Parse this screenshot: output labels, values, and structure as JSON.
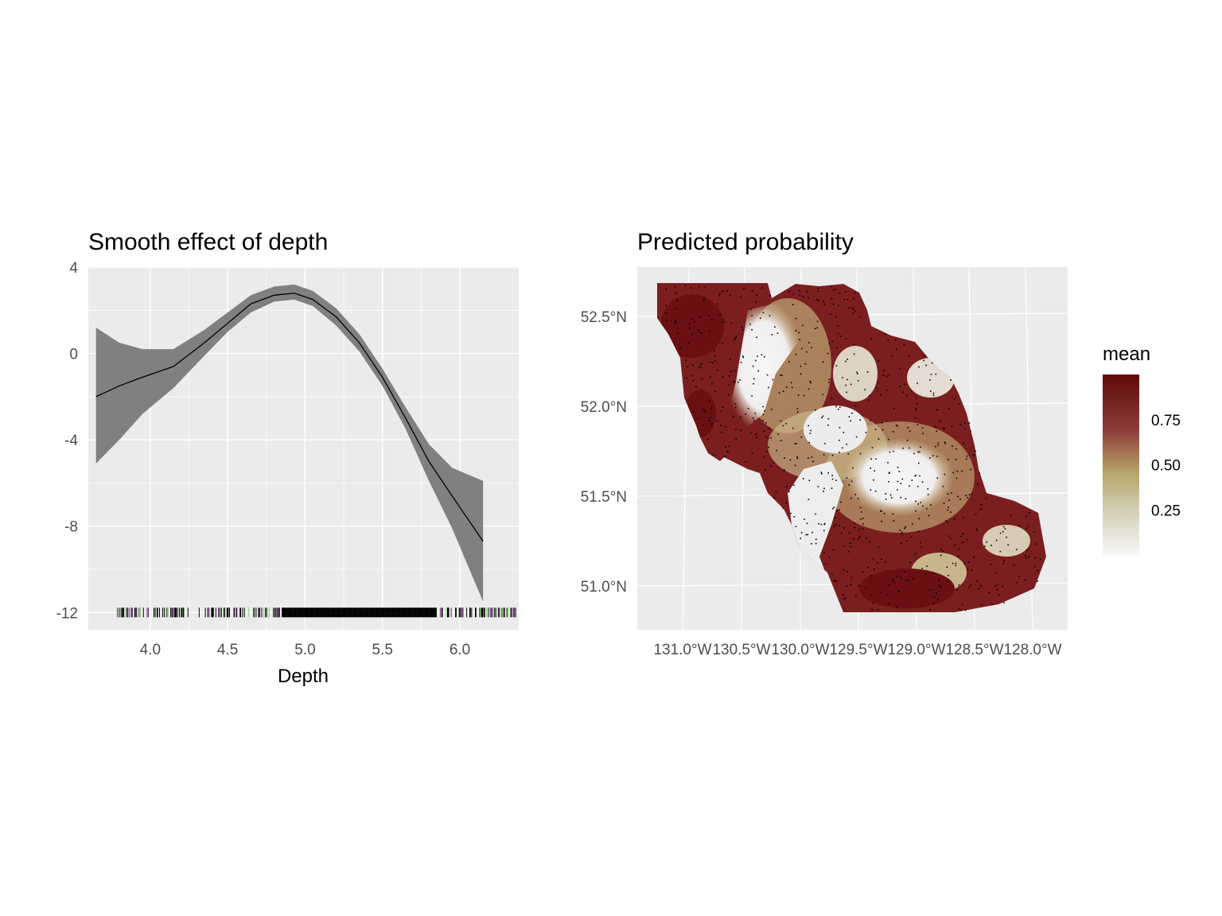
{
  "chart_data": [
    {
      "type": "line",
      "title": "Smooth effect of depth",
      "xlabel": "Depth",
      "ylabel": "",
      "xlim": [
        3.6,
        6.38
      ],
      "ylim": [
        -12.8,
        4
      ],
      "x_ticks": [
        "4.0",
        "4.5",
        "5.0",
        "5.5",
        "6.0"
      ],
      "y_ticks": [
        "4",
        "0",
        "-4",
        "-8",
        "-12"
      ],
      "x_tick_values": [
        4.0,
        4.5,
        5.0,
        5.5,
        6.0
      ],
      "y_tick_values": [
        4,
        0,
        -4,
        -8,
        -12
      ],
      "grid": true,
      "series": [
        {
          "x": [
            3.65,
            3.8,
            3.95,
            4.15,
            4.35,
            4.5,
            4.65,
            4.8,
            4.93,
            5.05,
            5.2,
            5.35,
            5.5,
            5.65,
            5.8,
            5.95,
            6.15
          ],
          "y": [
            -2.0,
            -1.5,
            -1.1,
            -0.6,
            0.5,
            1.4,
            2.3,
            2.7,
            2.8,
            2.5,
            1.7,
            0.5,
            -1.1,
            -3.0,
            -5.0,
            -6.6,
            -8.7
          ],
          "lower": [
            -5.1,
            -4.0,
            -2.8,
            -1.6,
            -0.1,
            1.0,
            1.9,
            2.4,
            2.5,
            2.2,
            1.3,
            0.1,
            -1.5,
            -3.5,
            -5.9,
            -8.1,
            -11.5
          ],
          "upper": [
            1.2,
            0.5,
            0.2,
            0.2,
            1.1,
            1.9,
            2.7,
            3.1,
            3.2,
            2.9,
            2.1,
            0.9,
            -0.7,
            -2.5,
            -4.2,
            -5.3,
            -5.9
          ]
        }
      ],
      "rug_y": -12,
      "rug_colors": [
        "#000000",
        "#7fd86a",
        "#6a1b7a"
      ]
    },
    {
      "type": "heatmap",
      "title": "Predicted probability",
      "x_ticks": [
        "131.0°W",
        "130.5°W",
        "130.0°W",
        "129.5°W",
        "129.0°W",
        "128.5°W",
        "128.0°W"
      ],
      "y_ticks": [
        "52.5°N",
        "52.0°N",
        "51.5°N",
        "51.0°N"
      ],
      "legend": {
        "title": "mean",
        "ticks": [
          "0.75",
          "0.50",
          "0.25"
        ],
        "tick_values": [
          0.75,
          0.5,
          0.25
        ],
        "range": [
          0,
          1
        ],
        "colors": [
          "#f7f7f7",
          "#b8a66a",
          "#8c3a3a",
          "#5e0a0a"
        ],
        "placement": "right"
      },
      "grid": true
    }
  ]
}
